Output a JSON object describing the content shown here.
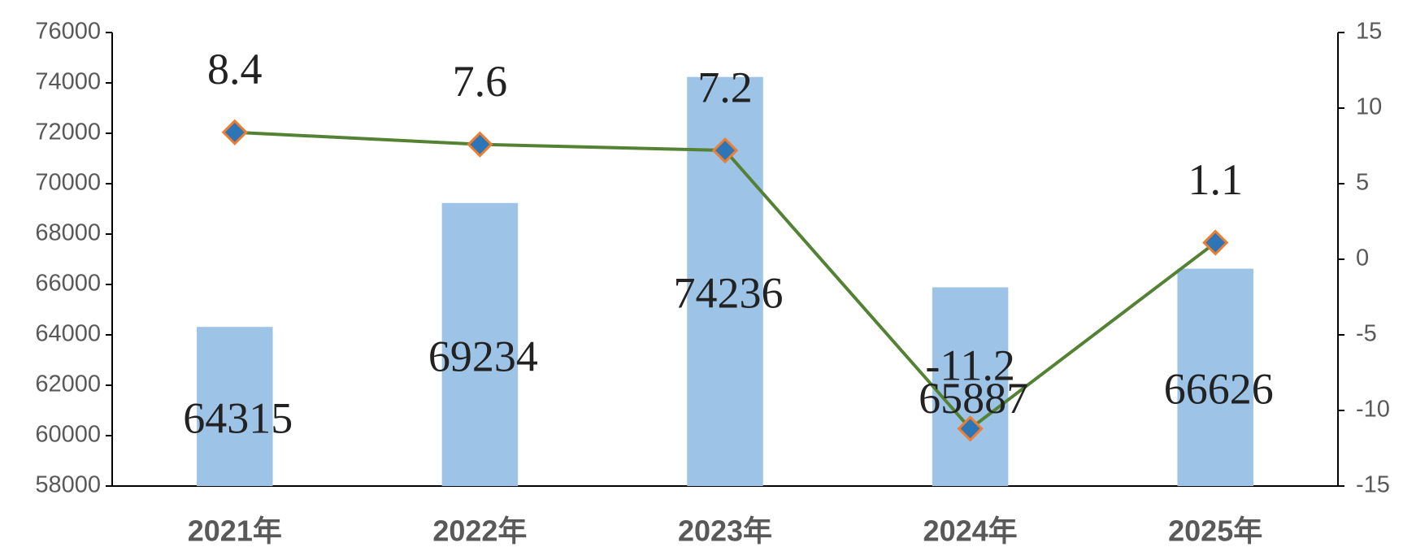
{
  "chart_data": {
    "type": "bar_line",
    "categories": [
      "2021年",
      "2022年",
      "2023年",
      "2024年",
      "2025年"
    ],
    "series": [
      {
        "type": "bar",
        "color": "#9dc3e6",
        "values": [
          64315,
          69234,
          74236,
          65887,
          66626
        ]
      },
      {
        "type": "line",
        "axis": "y2",
        "color": "#548235",
        "marker_color": "#2e75b6",
        "marker_edge": "#ed7d31",
        "values": [
          8.4,
          7.6,
          7.2,
          -11.2,
          1.1
        ]
      }
    ],
    "ylim": [
      58000,
      76000
    ],
    "yticks": [
      58000,
      60000,
      62000,
      64000,
      66000,
      68000,
      70000,
      72000,
      74000,
      76000
    ],
    "y2lim": [
      -15,
      15
    ],
    "y2ticks": [
      -15,
      -10,
      -5,
      0,
      5,
      10,
      15
    ],
    "grid": false
  }
}
